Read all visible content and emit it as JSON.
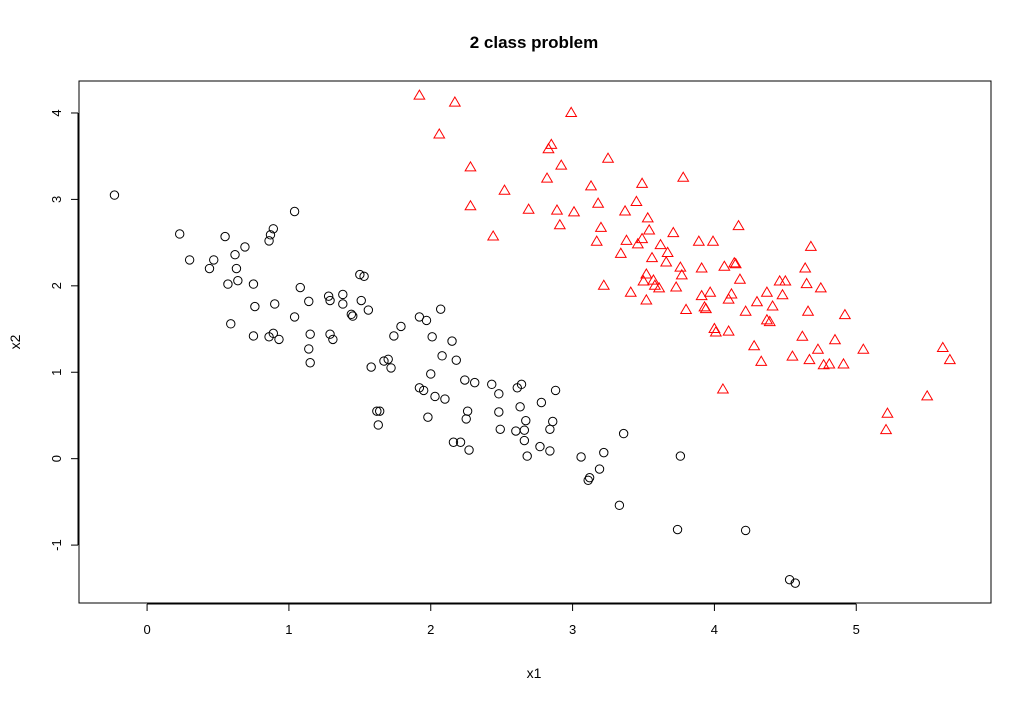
{
  "chart_data": {
    "type": "scatter",
    "title": "2 class problem",
    "xlabel": "x1",
    "ylabel": "x2",
    "xlim": [
      -0.48,
      5.95
    ],
    "ylim": [
      -1.67,
      4.37
    ],
    "xticks": [
      0,
      1,
      2,
      3,
      4,
      5
    ],
    "yticks": [
      -1,
      0,
      1,
      2,
      3,
      4
    ],
    "xtick_labels": [
      "0",
      "1",
      "2",
      "3",
      "4",
      "5"
    ],
    "ytick_labels": [
      "-1",
      "0",
      "1",
      "2",
      "3",
      "4"
    ],
    "grid": false,
    "legend": "none",
    "series": [
      {
        "marker": "circle",
        "color": "#000000",
        "points": [
          [
            -0.23,
            3.05
          ],
          [
            0.23,
            2.6
          ],
          [
            0.3,
            2.3
          ],
          [
            0.44,
            2.2
          ],
          [
            0.47,
            2.3
          ],
          [
            0.55,
            2.57
          ],
          [
            0.57,
            2.02
          ],
          [
            0.59,
            1.56
          ],
          [
            0.62,
            2.36
          ],
          [
            0.63,
            2.2
          ],
          [
            0.64,
            2.06
          ],
          [
            0.69,
            2.45
          ],
          [
            0.75,
            2.02
          ],
          [
            0.75,
            1.42
          ],
          [
            0.76,
            1.76
          ],
          [
            0.86,
            1.41
          ],
          [
            0.86,
            2.52
          ],
          [
            0.87,
            2.59
          ],
          [
            0.89,
            1.45
          ],
          [
            0.89,
            2.66
          ],
          [
            0.9,
            1.79
          ],
          [
            0.93,
            1.38
          ],
          [
            1.04,
            1.64
          ],
          [
            1.04,
            2.86
          ],
          [
            1.08,
            1.98
          ],
          [
            1.14,
            1.82
          ],
          [
            1.14,
            1.27
          ],
          [
            1.15,
            1.11
          ],
          [
            1.15,
            1.44
          ],
          [
            1.28,
            1.88
          ],
          [
            1.29,
            1.44
          ],
          [
            1.29,
            1.83
          ],
          [
            1.31,
            1.38
          ],
          [
            1.38,
            1.9
          ],
          [
            1.38,
            1.79
          ],
          [
            1.44,
            1.67
          ],
          [
            1.45,
            1.65
          ],
          [
            1.5,
            2.13
          ],
          [
            1.51,
            1.83
          ],
          [
            1.53,
            2.11
          ],
          [
            1.56,
            1.72
          ],
          [
            1.58,
            1.06
          ],
          [
            1.62,
            0.55
          ],
          [
            1.63,
            0.39
          ],
          [
            1.64,
            0.55
          ],
          [
            1.67,
            1.13
          ],
          [
            1.7,
            1.15
          ],
          [
            1.72,
            1.05
          ],
          [
            1.74,
            1.42
          ],
          [
            1.79,
            1.53
          ],
          [
            1.92,
            0.82
          ],
          [
            1.92,
            1.64
          ],
          [
            1.95,
            0.79
          ],
          [
            1.97,
            1.6
          ],
          [
            1.98,
            0.48
          ],
          [
            2.0,
            0.98
          ],
          [
            2.01,
            1.41
          ],
          [
            2.03,
            0.72
          ],
          [
            2.07,
            1.73
          ],
          [
            2.08,
            1.19
          ],
          [
            2.1,
            0.69
          ],
          [
            2.15,
            1.36
          ],
          [
            2.16,
            0.19
          ],
          [
            2.18,
            1.14
          ],
          [
            2.21,
            0.19
          ],
          [
            2.24,
            0.91
          ],
          [
            2.25,
            0.46
          ],
          [
            2.26,
            0.55
          ],
          [
            2.27,
            0.1
          ],
          [
            2.31,
            0.88
          ],
          [
            2.43,
            0.86
          ],
          [
            2.48,
            0.75
          ],
          [
            2.48,
            0.54
          ],
          [
            2.49,
            0.34
          ],
          [
            2.6,
            0.32
          ],
          [
            2.61,
            0.82
          ],
          [
            2.63,
            0.6
          ],
          [
            2.64,
            0.86
          ],
          [
            2.66,
            0.33
          ],
          [
            2.66,
            0.21
          ],
          [
            2.67,
            0.44
          ],
          [
            2.68,
            0.03
          ],
          [
            2.77,
            0.14
          ],
          [
            2.78,
            0.65
          ],
          [
            2.84,
            0.34
          ],
          [
            2.84,
            0.09
          ],
          [
            2.86,
            0.43
          ],
          [
            2.88,
            0.79
          ],
          [
            3.06,
            0.02
          ],
          [
            3.11,
            -0.25
          ],
          [
            3.12,
            -0.22
          ],
          [
            3.19,
            -0.12
          ],
          [
            3.22,
            0.07
          ],
          [
            3.33,
            -0.54
          ],
          [
            3.36,
            0.29
          ],
          [
            3.74,
            -0.82
          ],
          [
            3.76,
            0.03
          ],
          [
            4.22,
            -0.83
          ],
          [
            4.53,
            -1.4
          ],
          [
            4.57,
            -1.44
          ]
        ]
      },
      {
        "marker": "triangle",
        "color": "#ff0000",
        "points": [
          [
            1.92,
            4.2
          ],
          [
            2.06,
            3.75
          ],
          [
            2.17,
            4.12
          ],
          [
            2.28,
            2.92
          ],
          [
            2.28,
            3.37
          ],
          [
            2.44,
            2.57
          ],
          [
            2.52,
            3.1
          ],
          [
            2.69,
            2.88
          ],
          [
            2.82,
            3.24
          ],
          [
            2.83,
            3.58
          ],
          [
            2.85,
            3.63
          ],
          [
            2.89,
            2.87
          ],
          [
            2.91,
            2.7
          ],
          [
            2.92,
            3.39
          ],
          [
            2.99,
            4.0
          ],
          [
            3.01,
            2.85
          ],
          [
            3.13,
            3.15
          ],
          [
            3.17,
            2.51
          ],
          [
            3.18,
            2.95
          ],
          [
            3.2,
            2.67
          ],
          [
            3.22,
            2.0
          ],
          [
            3.25,
            3.47
          ],
          [
            3.34,
            2.37
          ],
          [
            3.37,
            2.86
          ],
          [
            3.38,
            2.52
          ],
          [
            3.41,
            1.92
          ],
          [
            3.45,
            2.97
          ],
          [
            3.46,
            2.48
          ],
          [
            3.49,
            2.54
          ],
          [
            3.49,
            3.18
          ],
          [
            3.5,
            2.05
          ],
          [
            3.52,
            2.13
          ],
          [
            3.52,
            1.83
          ],
          [
            3.53,
            2.78
          ],
          [
            3.54,
            2.64
          ],
          [
            3.56,
            2.32
          ],
          [
            3.57,
            2.06
          ],
          [
            3.58,
            2.0
          ],
          [
            3.61,
            1.97
          ],
          [
            3.62,
            2.47
          ],
          [
            3.66,
            2.27
          ],
          [
            3.67,
            2.38
          ],
          [
            3.71,
            2.61
          ],
          [
            3.73,
            1.98
          ],
          [
            3.76,
            2.21
          ],
          [
            3.77,
            2.12
          ],
          [
            3.78,
            3.25
          ],
          [
            3.8,
            1.72
          ],
          [
            3.89,
            2.51
          ],
          [
            3.91,
            2.2
          ],
          [
            3.91,
            1.88
          ],
          [
            3.93,
            1.75
          ],
          [
            3.94,
            1.73
          ],
          [
            3.97,
            1.92
          ],
          [
            3.99,
            2.51
          ],
          [
            4.0,
            1.5
          ],
          [
            4.01,
            1.46
          ],
          [
            4.06,
            0.8
          ],
          [
            4.07,
            2.22
          ],
          [
            4.1,
            1.47
          ],
          [
            4.1,
            1.84
          ],
          [
            4.12,
            1.9
          ],
          [
            4.14,
            2.26
          ],
          [
            4.15,
            2.25
          ],
          [
            4.17,
            2.69
          ],
          [
            4.18,
            2.07
          ],
          [
            4.22,
            1.7
          ],
          [
            4.28,
            1.3
          ],
          [
            4.3,
            1.81
          ],
          [
            4.33,
            1.12
          ],
          [
            4.37,
            1.92
          ],
          [
            4.37,
            1.6
          ],
          [
            4.39,
            1.58
          ],
          [
            4.41,
            1.76
          ],
          [
            4.46,
            2.05
          ],
          [
            4.48,
            1.89
          ],
          [
            4.5,
            2.05
          ],
          [
            4.55,
            1.18
          ],
          [
            4.62,
            1.41
          ],
          [
            4.64,
            2.2
          ],
          [
            4.65,
            2.02
          ],
          [
            4.66,
            1.7
          ],
          [
            4.67,
            1.14
          ],
          [
            4.68,
            2.45
          ],
          [
            4.73,
            1.26
          ],
          [
            4.75,
            1.97
          ],
          [
            4.77,
            1.08
          ],
          [
            4.81,
            1.09
          ],
          [
            4.85,
            1.37
          ],
          [
            4.91,
            1.09
          ],
          [
            4.92,
            1.66
          ],
          [
            5.05,
            1.26
          ],
          [
            5.21,
            0.33
          ],
          [
            5.22,
            0.52
          ],
          [
            5.5,
            0.72
          ],
          [
            5.61,
            1.28
          ],
          [
            5.66,
            1.14
          ]
        ]
      }
    ]
  }
}
